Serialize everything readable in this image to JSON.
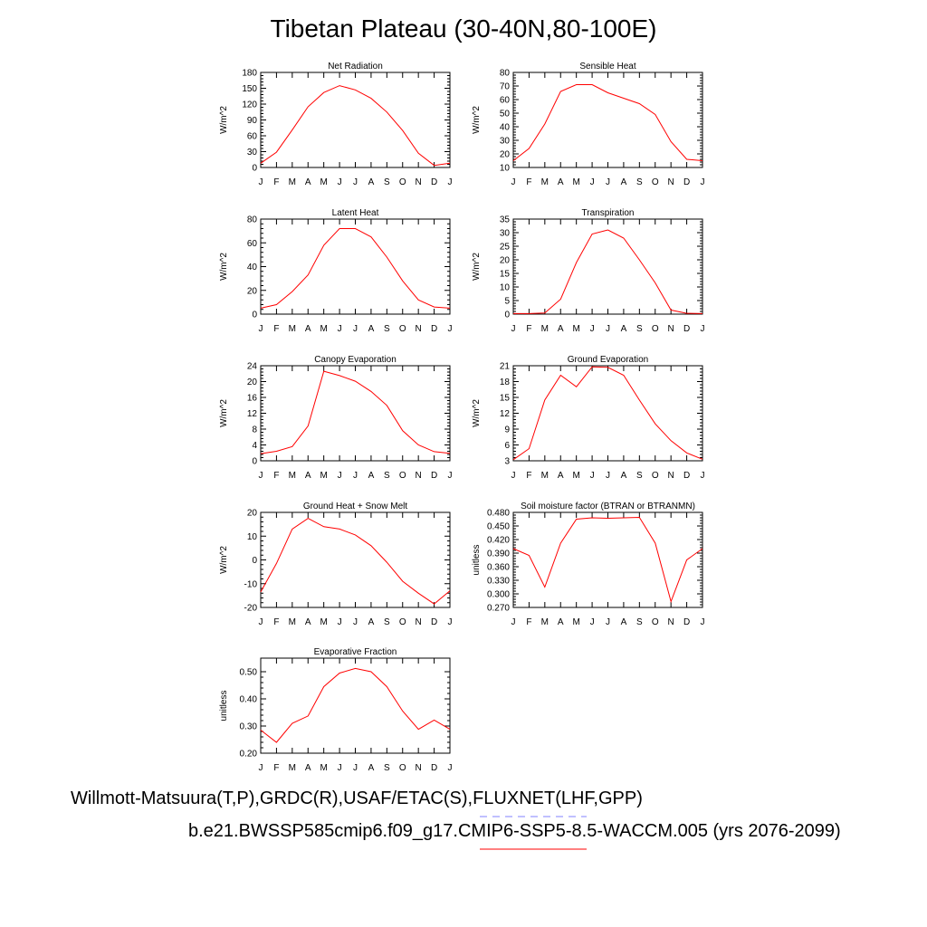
{
  "title": "Tibetan Plateau (30-40N,80-100E)",
  "footer": {
    "obs_line": "Willmott-Matsuura(T,P),GRDC(R),USAF/ETAC(S),FLUXNET(LHF,GPP)",
    "case_line": "b.e21.BWSSP585cmip6.f09_g17.CMIP6-SSP5-8.5-WACCM.005 (yrs 2076-2099)",
    "obs_color": "#8080ff",
    "case_color": "#ff0000"
  },
  "line_color": "#ff0000",
  "chart_data": [
    {
      "type": "line",
      "title": "Net Radiation",
      "ylabel": "W/m^2",
      "xticks": [
        "J",
        "F",
        "M",
        "A",
        "M",
        "J",
        "J",
        "A",
        "S",
        "O",
        "N",
        "D",
        "J"
      ],
      "yticks": [
        "0",
        "30",
        "60",
        "90",
        "120",
        "150",
        "180"
      ],
      "ylim": [
        0,
        180
      ],
      "values": [
        8,
        29,
        71,
        115,
        142,
        155,
        147,
        131,
        105,
        70,
        27,
        4,
        8
      ]
    },
    {
      "type": "line",
      "title": "Sensible Heat",
      "ylabel": "W/m^2",
      "xticks": [
        "J",
        "F",
        "M",
        "A",
        "M",
        "J",
        "J",
        "A",
        "S",
        "O",
        "N",
        "D",
        "J"
      ],
      "yticks": [
        "10",
        "20",
        "30",
        "40",
        "50",
        "60",
        "70",
        "80"
      ],
      "ylim": [
        10,
        80
      ],
      "values": [
        15,
        24,
        42,
        66,
        71,
        71,
        65,
        61,
        57,
        49,
        29,
        16,
        15
      ]
    },
    {
      "type": "line",
      "title": "Latent Heat",
      "ylabel": "W/m^2",
      "xticks": [
        "J",
        "F",
        "M",
        "A",
        "M",
        "J",
        "J",
        "A",
        "S",
        "O",
        "N",
        "D",
        "J"
      ],
      "yticks": [
        "0",
        "20",
        "40",
        "60",
        "80"
      ],
      "ylim": [
        0,
        80
      ],
      "values": [
        5,
        8,
        19,
        33,
        58,
        72,
        72,
        65,
        48,
        28,
        12,
        6,
        5
      ]
    },
    {
      "type": "line",
      "title": "Transpiration",
      "ylabel": "W/m^2",
      "xticks": [
        "J",
        "F",
        "M",
        "A",
        "M",
        "J",
        "J",
        "A",
        "S",
        "O",
        "N",
        "D",
        "J"
      ],
      "yticks": [
        "0",
        "5",
        "10",
        "15",
        "20",
        "25",
        "30",
        "35"
      ],
      "ylim": [
        0,
        35
      ],
      "values": [
        0.2,
        0.2,
        0.4,
        5.5,
        19,
        29.5,
        31,
        28,
        20,
        11.5,
        1.5,
        0.3,
        0.2
      ]
    },
    {
      "type": "line",
      "title": "Canopy Evaporation",
      "ylabel": "W/m^2",
      "xticks": [
        "J",
        "F",
        "M",
        "A",
        "M",
        "J",
        "J",
        "A",
        "S",
        "O",
        "N",
        "D",
        "J"
      ],
      "yticks": [
        "0",
        "4",
        "8",
        "12",
        "16",
        "20",
        "24"
      ],
      "ylim": [
        0,
        24
      ],
      "values": [
        1.8,
        2.4,
        3.6,
        8.8,
        22.6,
        21.5,
        20.1,
        17.5,
        14,
        7.6,
        4,
        2.3,
        1.9
      ]
    },
    {
      "type": "line",
      "title": "Ground Evaporation",
      "ylabel": "W/m^2",
      "xticks": [
        "J",
        "F",
        "M",
        "A",
        "M",
        "J",
        "J",
        "A",
        "S",
        "O",
        "N",
        "D",
        "J"
      ],
      "yticks": [
        "3",
        "6",
        "9",
        "12",
        "15",
        "18",
        "21"
      ],
      "ylim": [
        3,
        21
      ],
      "values": [
        3.2,
        5.3,
        14.5,
        19.2,
        17,
        20.8,
        20.7,
        19.2,
        14.5,
        10,
        6.8,
        4.5,
        3.3
      ]
    },
    {
      "type": "line",
      "title": "Ground Heat + Snow Melt",
      "ylabel": "W/m^2",
      "xticks": [
        "J",
        "F",
        "M",
        "A",
        "M",
        "J",
        "J",
        "A",
        "S",
        "O",
        "N",
        "D",
        "J"
      ],
      "yticks": [
        "-20",
        "-10",
        "0",
        "10",
        "20"
      ],
      "ylim": [
        -20,
        20
      ],
      "values": [
        -13.5,
        -1.5,
        13,
        17.5,
        14,
        13,
        10.5,
        6,
        -1,
        -9,
        -14,
        -18.5,
        -13
      ]
    },
    {
      "type": "line",
      "title": "Soil moisture factor (BTRAN or BTRANMN)",
      "ylabel": "unitless",
      "xticks": [
        "J",
        "F",
        "M",
        "A",
        "M",
        "J",
        "J",
        "A",
        "S",
        "O",
        "N",
        "D",
        "J"
      ],
      "yticks": [
        "0.270",
        "0.300",
        "0.330",
        "0.360",
        "0.390",
        "0.420",
        "0.450",
        "0.480"
      ],
      "ylim": [
        0.27,
        0.48
      ],
      "values": [
        0.4,
        0.385,
        0.315,
        0.412,
        0.465,
        0.468,
        0.467,
        0.468,
        0.469,
        0.412,
        0.283,
        0.375,
        0.4
      ]
    },
    {
      "type": "line",
      "title": "Evaporative Fraction",
      "ylabel": "unitless",
      "xticks": [
        "J",
        "F",
        "M",
        "A",
        "M",
        "J",
        "J",
        "A",
        "S",
        "O",
        "N",
        "D",
        "J"
      ],
      "yticks": [
        "0.20",
        "0.30",
        "0.40",
        "0.50"
      ],
      "ylim": [
        0.2,
        0.55
      ],
      "values": [
        0.285,
        0.24,
        0.31,
        0.337,
        0.445,
        0.495,
        0.512,
        0.5,
        0.445,
        0.355,
        0.288,
        0.322,
        0.288
      ]
    }
  ]
}
